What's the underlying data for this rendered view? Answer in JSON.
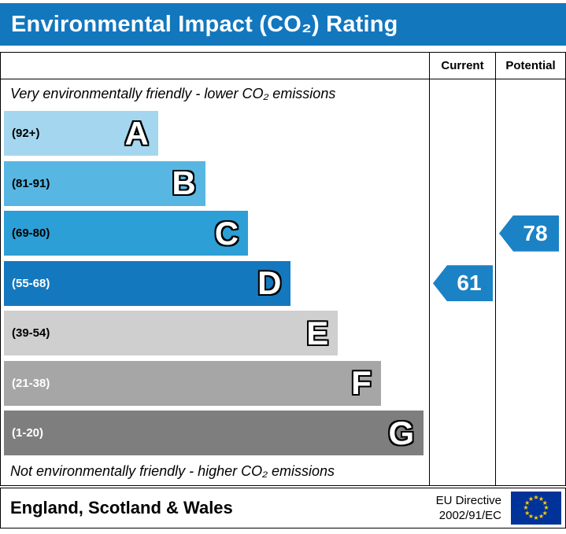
{
  "title": "Environmental Impact (CO₂) Rating",
  "header": {
    "current": "Current",
    "potential": "Potential"
  },
  "notes": {
    "top": "Very environmentally friendly - lower CO₂ emissions",
    "bottom": "Not environmentally friendly - higher CO₂ emissions"
  },
  "footer": {
    "region": "England, Scotland & Wales",
    "directive_line1": "EU Directive",
    "directive_line2": "2002/91/EC",
    "flag_colors": {
      "background": "#003399",
      "stars": "#FFCC00"
    }
  },
  "colors": {
    "title_bg": "#1377BD",
    "title_text": "#FFFFFF",
    "arrow": "#1B82C5"
  },
  "chart_data": {
    "type": "bar",
    "title": "Environmental Impact (CO₂) Rating",
    "bands": [
      {
        "letter": "A",
        "range": "(92+)",
        "color": "#A4D7EF",
        "width_pct": 36,
        "label_color": "#000000"
      },
      {
        "letter": "B",
        "range": "(81-91)",
        "color": "#58B6E3",
        "width_pct": 47,
        "label_color": "#000000"
      },
      {
        "letter": "C",
        "range": "(69-80)",
        "color": "#2C9FD6",
        "width_pct": 57,
        "label_color": "#000000"
      },
      {
        "letter": "D",
        "range": "(55-68)",
        "color": "#1478BE",
        "width_pct": 67,
        "label_color": "#FFFFFF"
      },
      {
        "letter": "E",
        "range": "(39-54)",
        "color": "#CFCFCF",
        "width_pct": 78,
        "label_color": "#000000"
      },
      {
        "letter": "F",
        "range": "(21-38)",
        "color": "#A6A6A6",
        "width_pct": 88,
        "label_color": "#FFFFFF"
      },
      {
        "letter": "G",
        "range": "(1-20)",
        "color": "#7E7E7E",
        "width_pct": 98,
        "label_color": "#FFFFFF"
      }
    ],
    "current": {
      "value": 61,
      "band": "D",
      "band_index": 3
    },
    "potential": {
      "value": 78,
      "band": "C",
      "band_index": 2
    }
  }
}
